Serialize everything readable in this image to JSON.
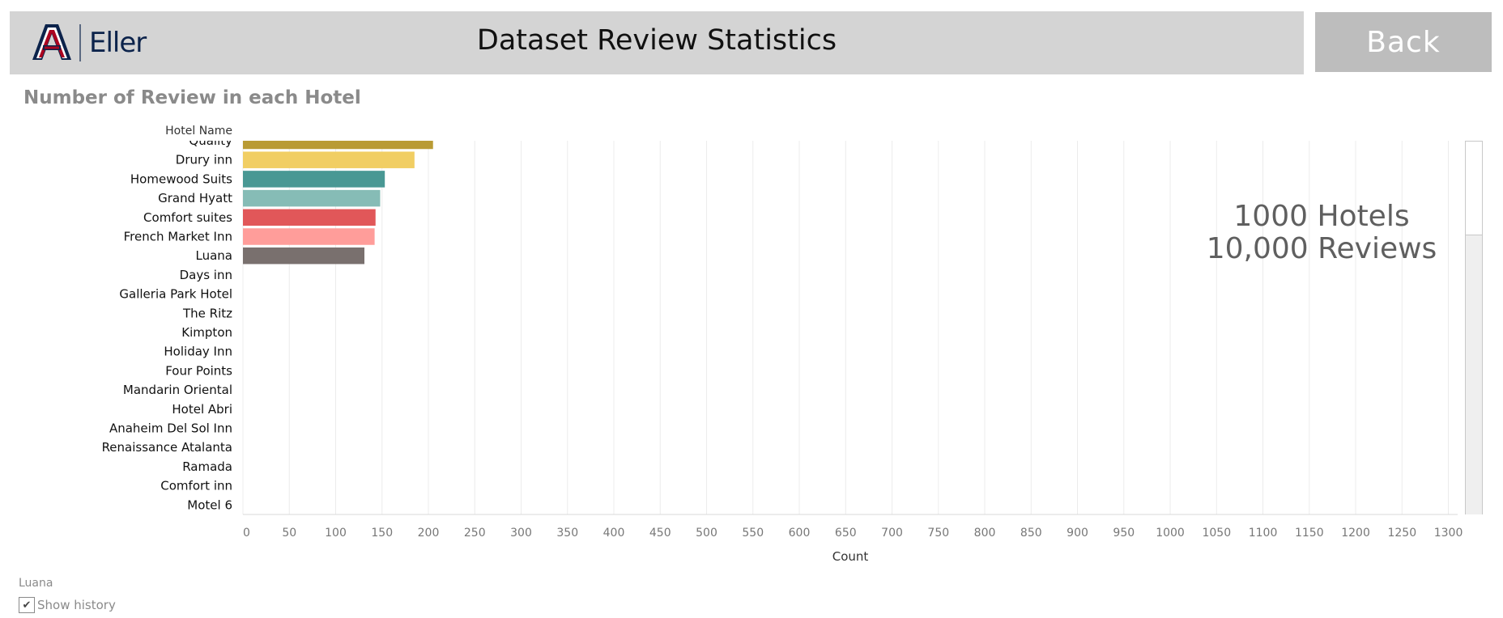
{
  "header": {
    "logo_text": "Eller",
    "title": "Dataset Review Statistics",
    "back_label": "Back"
  },
  "sheet": {
    "title": "Number of Review in each Hotel",
    "row_header": "Hotel Name"
  },
  "kpi": {
    "line1": "1000 Hotels",
    "line2": "10,000 Reviews"
  },
  "footer": {
    "selection_label": "Luana",
    "history_label": "Show history",
    "history_checked": true
  },
  "colors": {
    "header_bg": "#d4d4d4",
    "back_bg": "#bdbdbd",
    "gridline": "#ececec",
    "logo_navy": "#0c234b",
    "logo_red": "#ab0520"
  },
  "chart_data": {
    "type": "bar",
    "orientation": "horizontal",
    "categories": [
      "Quality",
      "Drury inn",
      "Homewood Suits",
      "Grand Hyatt",
      "Comfort suites",
      "French Market Inn",
      "Luana",
      "Days inn",
      "Galleria Park Hotel",
      "The Ritz",
      "Kimpton",
      "Holiday Inn",
      "Four Points",
      "Mandarin Oriental",
      "Hotel Abri",
      "Anaheim Del Sol Inn",
      "Renaissance Atalanta",
      "Ramada",
      "Comfort inn",
      "Motel 6"
    ],
    "values": [
      205,
      185,
      153,
      148,
      143,
      142,
      131,
      null,
      null,
      null,
      null,
      null,
      null,
      null,
      null,
      null,
      null,
      null,
      null,
      null
    ],
    "colors": [
      "#b99b34",
      "#f1ce63",
      "#499894",
      "#86bcb6",
      "#e15759",
      "#ff9d9a",
      "#79706e"
    ],
    "xlabel": "Count",
    "ylabel": "Hotel Name",
    "xlim": [
      0,
      1310
    ],
    "xticks": [
      0,
      50,
      100,
      150,
      200,
      250,
      300,
      350,
      400,
      450,
      500,
      550,
      600,
      650,
      700,
      750,
      800,
      850,
      900,
      950,
      1000,
      1050,
      1100,
      1150,
      1200,
      1250,
      1300
    ],
    "grid": true
  }
}
